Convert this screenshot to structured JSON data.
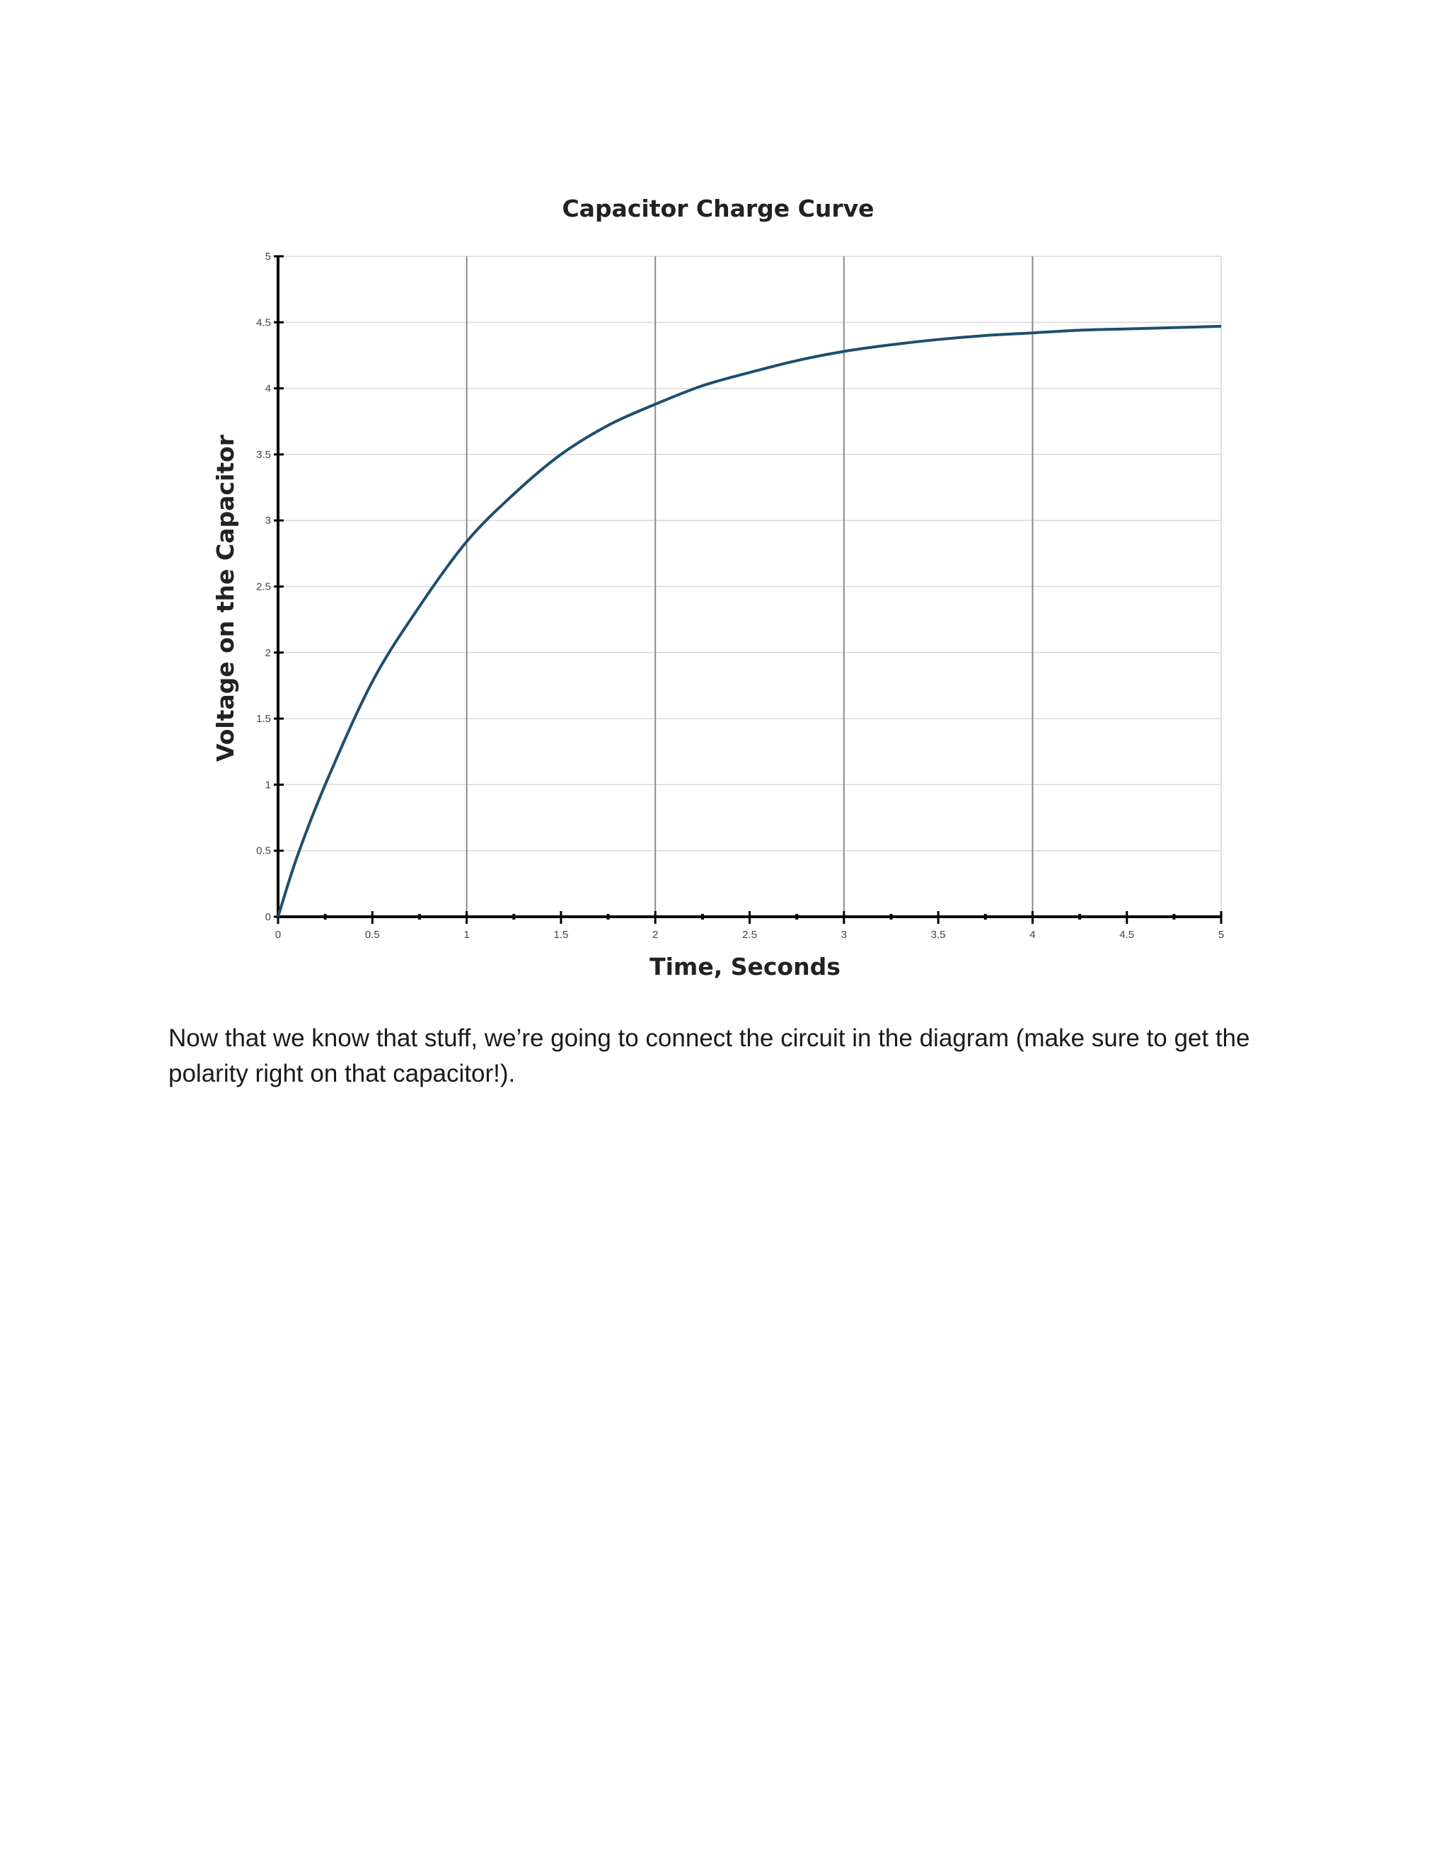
{
  "body": {
    "paragraph": "Now that we know that stuff, we’re going to connect the circuit in the diagram (make sure to get the polarity right on that capacitor!)."
  },
  "chart_data": {
    "type": "line",
    "title": "Capacitor Charge Curve",
    "xlabel": "Time, Seconds",
    "ylabel": "Voltage on the Capacitor",
    "xlim": [
      0,
      5
    ],
    "ylim": [
      0,
      5
    ],
    "x_ticks": [
      "0",
      "0.5",
      "1",
      "1.5",
      "2",
      "2.5",
      "3",
      "3.5",
      "4",
      "4.5",
      "5"
    ],
    "y_ticks": [
      "0",
      "0.5",
      "1",
      "1.5",
      "2",
      "2.5",
      "3",
      "3.5",
      "4",
      "4.5",
      "5"
    ],
    "grid": true,
    "series_color": "#1f4e6e",
    "series": [
      {
        "x": [
          0,
          0.1,
          0.25,
          0.5,
          0.75,
          1,
          1.25,
          1.5,
          1.75,
          2,
          2.25,
          2.5,
          2.75,
          3,
          3.25,
          3.5,
          3.75,
          4,
          4.25,
          4.5,
          4.75,
          5
        ],
        "values": [
          0,
          0.45,
          1.0,
          1.78,
          2.35,
          2.84,
          3.2,
          3.5,
          3.72,
          3.88,
          4.02,
          4.12,
          4.21,
          4.28,
          4.33,
          4.37,
          4.4,
          4.42,
          4.44,
          4.45,
          4.46,
          4.47
        ]
      }
    ]
  }
}
